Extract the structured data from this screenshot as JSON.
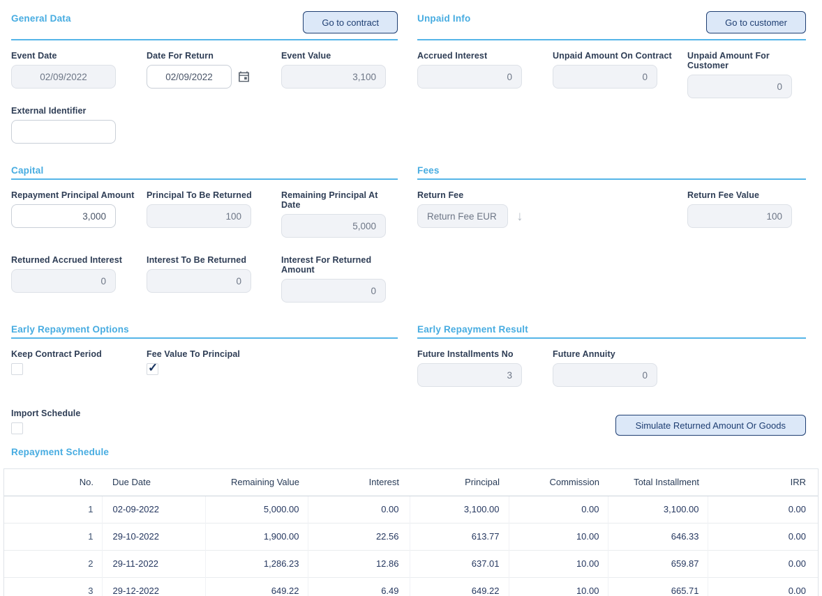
{
  "colors": {
    "accent_blue": "#47ACE1",
    "rule_blue": "#55B5E8",
    "navy": "#1E3E72",
    "button_bg": "#DCE8F8",
    "label_text": "#2E3D55",
    "disabled_bg": "#F1F3F7",
    "disabled_text": "#6D7686",
    "table_text": "#25375F"
  },
  "icons": {
    "checkmark": "✓",
    "dropdown_arrow": "↓",
    "calendar": "calendar-icon"
  },
  "sections": {
    "general_data": {
      "title": "General Data",
      "button": "Go to contract",
      "fields": {
        "event_date": {
          "label": "Event Date",
          "value": "02/09/2022"
        },
        "date_for_return": {
          "label": "Date For Return",
          "value": "02/09/2022"
        },
        "event_value": {
          "label": "Event Value",
          "value": "3,100"
        },
        "external_identifier": {
          "label": "External Identifier",
          "value": ""
        }
      }
    },
    "unpaid_info": {
      "title": "Unpaid Info",
      "button": "Go to customer",
      "fields": {
        "accrued_interest": {
          "label": "Accrued Interest",
          "value": "0"
        },
        "unpaid_amount_on_contract": {
          "label": "Unpaid Amount On Contract",
          "value": "0"
        },
        "unpaid_amount_for_customer": {
          "label": "Unpaid Amount For Customer",
          "value": "0"
        }
      }
    },
    "capital": {
      "title": "Capital",
      "fields": {
        "repayment_principal_amount": {
          "label": "Repayment Principal Amount",
          "value": "3,000"
        },
        "principal_to_be_returned": {
          "label": "Principal To Be Returned",
          "value": "100"
        },
        "remaining_principal_at_date": {
          "label": "Remaining Principal At Date",
          "value": "5,000"
        },
        "returned_accrued_interest": {
          "label": "Returned Accrued Interest",
          "value": "0"
        },
        "interest_to_be_returned": {
          "label": "Interest To Be Returned",
          "value": "0"
        },
        "interest_for_returned_amount": {
          "label": "Interest For Returned Amount",
          "value": "0"
        }
      }
    },
    "fees": {
      "title": "Fees",
      "fields": {
        "return_fee": {
          "label": "Return Fee",
          "value": "Return Fee EUR"
        },
        "return_fee_value": {
          "label": "Return Fee Value",
          "value": "100"
        }
      }
    },
    "early_repayment_options": {
      "title": "Early Repayment Options",
      "fields": {
        "keep_contract_period": {
          "label": "Keep Contract Period",
          "checked": false
        },
        "fee_value_to_principal": {
          "label": "Fee Value To Principal",
          "checked": true
        },
        "import_schedule": {
          "label": "Import Schedule",
          "checked": false
        }
      }
    },
    "early_repayment_result": {
      "title": "Early Repayment Result",
      "button": "Simulate Returned Amount Or Goods",
      "fields": {
        "future_installments_no": {
          "label": "Future Installments No",
          "value": "3"
        },
        "future_annuity": {
          "label": "Future Annuity",
          "value": "0"
        }
      }
    },
    "repayment_schedule": {
      "title": "Repayment Schedule",
      "columns": [
        "No.",
        "Due Date",
        "Remaining Value",
        "Interest",
        "Principal",
        "Commission",
        "Total Installment",
        "IRR"
      ],
      "rows": [
        [
          "1",
          "02-09-2022",
          "5,000.00",
          "0.00",
          "3,100.00",
          "0.00",
          "3,100.00",
          "0.00"
        ],
        [
          "1",
          "29-10-2022",
          "1,900.00",
          "22.56",
          "613.77",
          "10.00",
          "646.33",
          "0.00"
        ],
        [
          "2",
          "29-11-2022",
          "1,286.23",
          "12.86",
          "637.01",
          "10.00",
          "659.87",
          "0.00"
        ],
        [
          "3",
          "29-12-2022",
          "649.22",
          "6.49",
          "649.22",
          "10.00",
          "665.71",
          "0.00"
        ]
      ]
    }
  }
}
